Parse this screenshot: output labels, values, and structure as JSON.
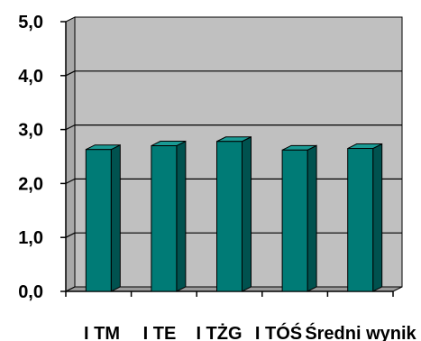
{
  "chart_data": {
    "type": "bar",
    "title": "",
    "xlabel": "",
    "ylabel": "",
    "categories": [
      "I TM",
      "I TE",
      "I TŻG",
      "I TÓŚ",
      "Średni wynik"
    ],
    "series": [
      {
        "values": [
          2.63,
          2.7,
          2.78,
          2.62,
          2.65
        ]
      }
    ],
    "ylim": [
      0,
      5
    ],
    "y_ticks": [
      "0,0",
      "1,0",
      "2,0",
      "3,0",
      "4,0",
      "5,0"
    ],
    "grid": true,
    "style": "3d",
    "colors": {
      "bar_front": "#007b76",
      "bar_side": "#00524f",
      "bar_top": "#1a9a94",
      "wall": "#c0c0c0",
      "floor": "#9a9a9a",
      "gridline": "#000000"
    }
  }
}
